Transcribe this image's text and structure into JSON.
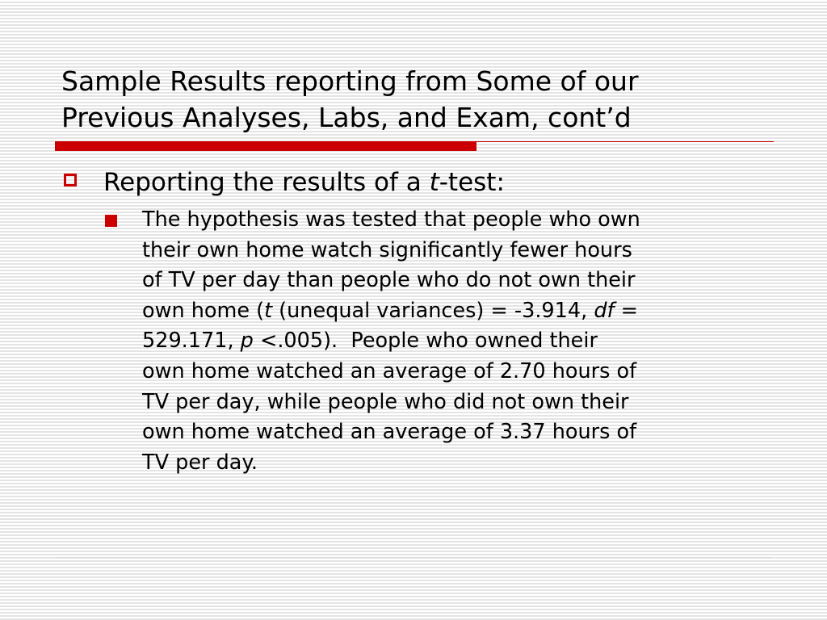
{
  "slide": {
    "title_line1": "Sample Results reporting from Some of our",
    "title_line2": "Previous Analyses, Labs, and Exam, cont’d",
    "accent_color": "#cc0000",
    "bullet1": {
      "pre": "Reporting the results of a ",
      "italic": "t",
      "post": "-test:",
      "icon": "hollow-square-bullet"
    },
    "bullet2": {
      "icon": "filled-square-bullet",
      "lines": [
        "The hypothesis was tested that people who own",
        "their own home watch significantly fewer hours",
        "of TV per day than people who do not own their"
      ],
      "line4_a": "own home (",
      "line4_t": "t",
      "line4_b": " (unequal variances) = -3.914, ",
      "line4_df": "df",
      "line4_c": " =",
      "line5_a": "529.171, ",
      "line5_p": "p",
      "line5_b": " <.005).  People who owned their",
      "lines_after": [
        "own home watched an average of 2.70 hours of",
        "TV per day, while people who did not own their",
        "own home watched an average of 3.37 hours of",
        "TV per day."
      ]
    }
  }
}
